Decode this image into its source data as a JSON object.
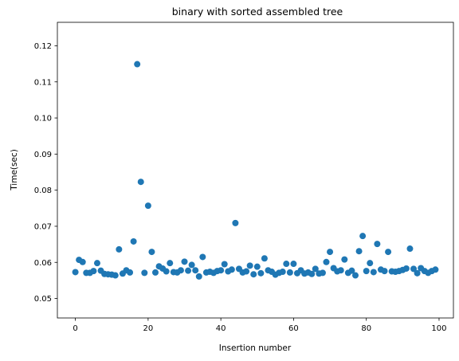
{
  "chart_data": {
    "type": "scatter",
    "title": "binary with sorted assembled tree",
    "xlabel": "Insertion number",
    "ylabel": "Time(sec)",
    "xlim": [
      -4.95,
      103.95
    ],
    "ylim": [
      0.0446,
      0.1265
    ],
    "xticks": [
      0,
      20,
      40,
      60,
      80,
      100
    ],
    "yticks": [
      0.05,
      0.06,
      0.07,
      0.08,
      0.09,
      0.1,
      0.11,
      0.12
    ],
    "xtick_labels": [
      "0",
      "20",
      "40",
      "60",
      "80",
      "100"
    ],
    "ytick_labels": [
      "0.05",
      "0.06",
      "0.07",
      "0.08",
      "0.09",
      "0.10",
      "0.11",
      "0.12"
    ],
    "grid": false,
    "marker_color": "#1f77b4",
    "series": [
      {
        "x": [
          0,
          1,
          2,
          3,
          4,
          5,
          6,
          7,
          8,
          9,
          10,
          11,
          12,
          13,
          14,
          15,
          16,
          17,
          18,
          19,
          20,
          21,
          22,
          23,
          24,
          25,
          26,
          27,
          28,
          29,
          30,
          31,
          32,
          33,
          34,
          35,
          36,
          37,
          38,
          39,
          40,
          41,
          42,
          43,
          44,
          45,
          46,
          47,
          48,
          49,
          50,
          51,
          52,
          53,
          54,
          55,
          56,
          57,
          58,
          59,
          60,
          61,
          62,
          63,
          64,
          65,
          66,
          67,
          68,
          69,
          70,
          71,
          72,
          73,
          74,
          75,
          76,
          77,
          78,
          79,
          80,
          81,
          82,
          83,
          84,
          85,
          86,
          87,
          88,
          89,
          90,
          91,
          92,
          93,
          94,
          95,
          96,
          97,
          98,
          99
        ],
        "y": [
          0.0573,
          0.0607,
          0.0601,
          0.0571,
          0.0571,
          0.0576,
          0.0598,
          0.0577,
          0.0568,
          0.0567,
          0.0566,
          0.0564,
          0.0636,
          0.0569,
          0.0578,
          0.0572,
          0.0658,
          0.1149,
          0.0823,
          0.0571,
          0.0757,
          0.0629,
          0.0572,
          0.0589,
          0.0583,
          0.0575,
          0.0598,
          0.0573,
          0.0572,
          0.0578,
          0.0602,
          0.0577,
          0.0593,
          0.0578,
          0.0561,
          0.0615,
          0.0572,
          0.0574,
          0.0571,
          0.0576,
          0.0578,
          0.0595,
          0.0575,
          0.058,
          0.0709,
          0.0582,
          0.0572,
          0.0575,
          0.0591,
          0.0567,
          0.0588,
          0.057,
          0.0611,
          0.0578,
          0.0574,
          0.0566,
          0.0571,
          0.0574,
          0.0596,
          0.0572,
          0.0596,
          0.057,
          0.0578,
          0.0569,
          0.0572,
          0.0568,
          0.0582,
          0.0569,
          0.0571,
          0.0601,
          0.0629,
          0.0584,
          0.0575,
          0.0578,
          0.0608,
          0.0571,
          0.0577,
          0.0564,
          0.0631,
          0.0673,
          0.0576,
          0.0598,
          0.0573,
          0.0651,
          0.058,
          0.0576,
          0.0629,
          0.0575,
          0.0574,
          0.0576,
          0.0579,
          0.0583,
          0.0638,
          0.0582,
          0.057,
          0.0584,
          0.0576,
          0.0571,
          0.0576,
          0.058
        ]
      }
    ]
  }
}
